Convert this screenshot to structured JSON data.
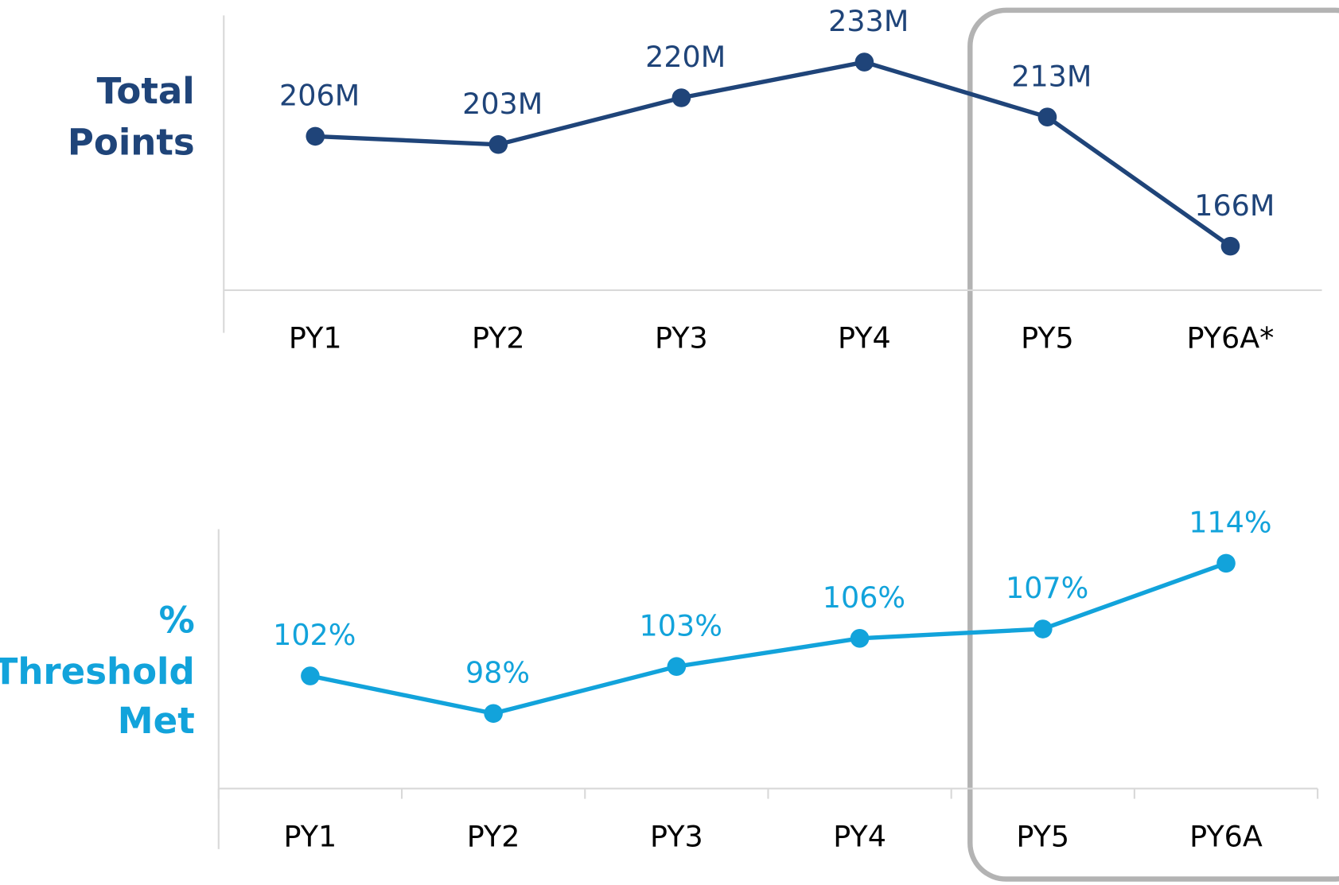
{
  "chart_data": [
    {
      "type": "line",
      "ylabel_lines": [
        "Total",
        "Points"
      ],
      "categories": [
        "PY1",
        "PY2",
        "PY3",
        "PY4",
        "PY5",
        "PY6A*"
      ],
      "values": [
        206,
        203,
        220,
        233,
        213,
        166
      ],
      "value_labels": [
        "206M",
        "203M",
        "220M",
        "233M",
        "213M",
        "166M"
      ],
      "color": "#1f4479",
      "ylim": [
        150,
        250
      ]
    },
    {
      "type": "line",
      "ylabel_lines": [
        "%",
        "Threshold",
        "Met"
      ],
      "categories": [
        "PY1",
        "PY2",
        "PY3",
        "PY4",
        "PY5",
        "PY6A"
      ],
      "values": [
        102,
        98,
        103,
        106,
        107,
        114
      ],
      "value_labels": [
        "102%",
        "98%",
        "103%",
        "106%",
        "107%",
        "114%"
      ],
      "color": "#12a3db",
      "ylim": [
        90,
        120
      ]
    }
  ]
}
